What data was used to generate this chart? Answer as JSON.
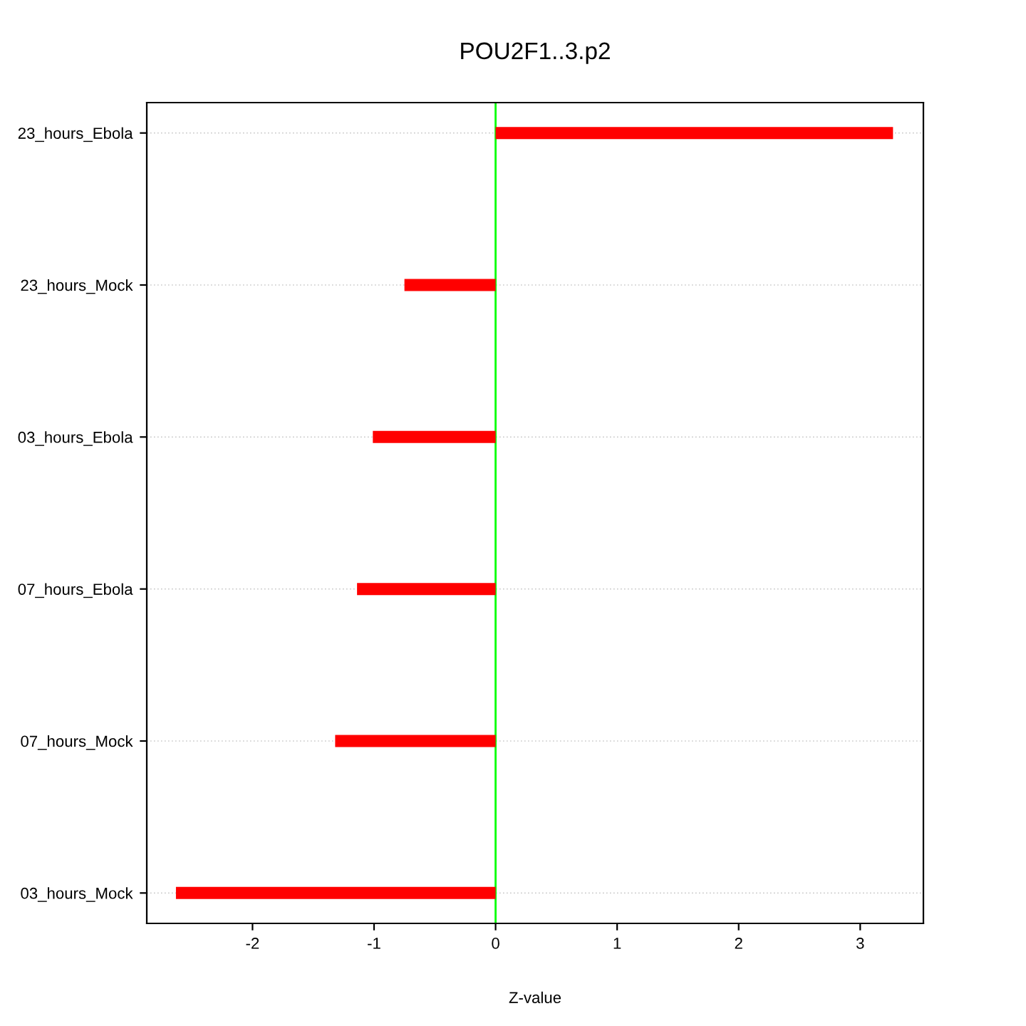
{
  "chart_data": {
    "type": "bar",
    "orientation": "horizontal",
    "title": "POU2F1..3.p2",
    "xlabel": "Z-value",
    "categories": [
      "23_hours_Ebola",
      "23_hours_Mock",
      "03_hours_Ebola",
      "07_hours_Ebola",
      "07_hours_Mock",
      "03_hours_Mock"
    ],
    "values": [
      3.27,
      -0.75,
      -1.01,
      -1.14,
      -1.32,
      -2.63
    ],
    "color": "#ff0000",
    "xlim": [
      -2.87,
      3.52
    ],
    "xticks": [
      -2,
      -1,
      0,
      1,
      2,
      3
    ],
    "grid": "y",
    "ref_lines": [
      {
        "axis": "x",
        "value": 0,
        "color": "#00ff00"
      }
    ]
  }
}
